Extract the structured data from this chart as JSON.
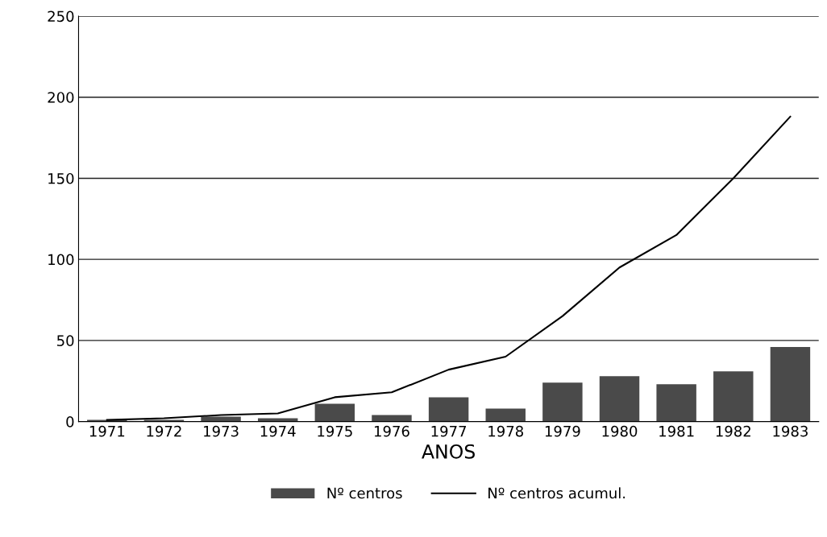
{
  "chart_data": {
    "type": "bar",
    "xlabel": "ANOS",
    "categories": [
      "1971",
      "1972",
      "1973",
      "1974",
      "1975",
      "1976",
      "1977",
      "1978",
      "1979",
      "1980",
      "1981",
      "1982",
      "1983"
    ],
    "series": [
      {
        "name": "Nº centros",
        "color": "#4a4a4a",
        "values": [
          1,
          1,
          3,
          2,
          11,
          4,
          15,
          8,
          24,
          28,
          23,
          31,
          46
        ]
      },
      {
        "name": "Nº centros acumul.",
        "type": "line",
        "color": "#000000",
        "values": [
          1,
          2,
          4,
          5,
          15,
          18,
          32,
          40,
          65,
          95,
          115,
          150,
          188
        ]
      }
    ],
    "ylim": [
      0,
      250
    ],
    "yticks": [
      0,
      50,
      100,
      150,
      200,
      250
    ],
    "grid": "y",
    "legend": "bottom",
    "marker": "none",
    "line_style": "solid"
  }
}
